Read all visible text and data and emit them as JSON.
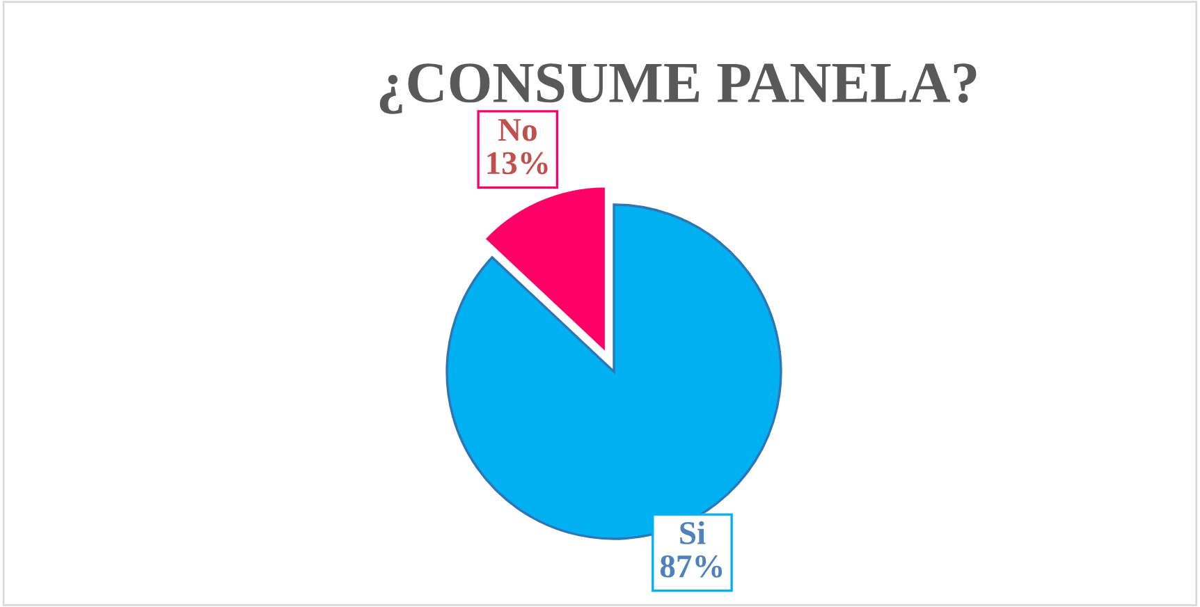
{
  "chart_data": {
    "type": "pie",
    "title": "¿CONSUME PANELA?",
    "categories": [
      "Si",
      "No"
    ],
    "values": [
      87,
      13
    ],
    "colors": [
      "#00b0f0",
      "#ff0066"
    ],
    "value_labels": [
      "87%",
      "13%"
    ],
    "legend": false
  }
}
